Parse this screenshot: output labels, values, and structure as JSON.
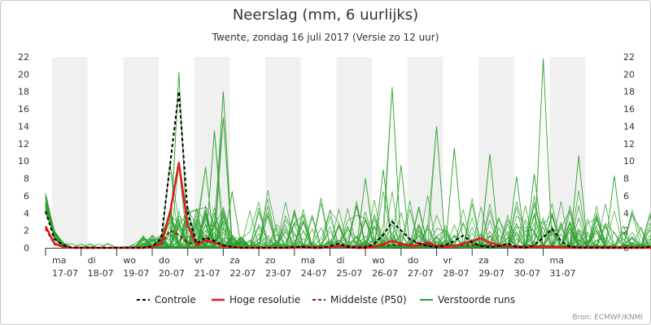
{
  "chart_data": {
    "type": "line",
    "title": "Neerslag (mm, 6 uurlijks)",
    "subtitle": "Twente, zondag 16 juli 2017 (Versie zo 12 uur)",
    "credit": "Bron: ECMWF/KNMI",
    "ylim": [
      0,
      22
    ],
    "yticks": [
      0,
      2,
      4,
      6,
      8,
      10,
      12,
      14,
      16,
      18,
      20,
      22
    ],
    "xlim": [
      0,
      15.75
    ],
    "grid": false,
    "legend_position": "bottom",
    "x_labels": [
      {
        "day": "ma",
        "date": "17-07"
      },
      {
        "day": "di",
        "date": "18-07"
      },
      {
        "day": "wo",
        "date": "19-07"
      },
      {
        "day": "do",
        "date": "20-07"
      },
      {
        "day": "vr",
        "date": "21-07"
      },
      {
        "day": "za",
        "date": "22-07"
      },
      {
        "day": "zo",
        "date": "23-07"
      },
      {
        "day": "ma",
        "date": "24-07"
      },
      {
        "day": "di",
        "date": "25-07"
      },
      {
        "day": "wo",
        "date": "26-07"
      },
      {
        "day": "do",
        "date": "27-07"
      },
      {
        "day": "vr",
        "date": "28-07"
      },
      {
        "day": "za",
        "date": "29-07"
      },
      {
        "day": "zo",
        "date": "30-07"
      },
      {
        "day": "ma",
        "date": "31-07"
      }
    ],
    "shaded_bands": [
      [
        0,
        1
      ],
      [
        2,
        3
      ],
      [
        4,
        5
      ],
      [
        6,
        7
      ],
      [
        8,
        9
      ],
      [
        10,
        11
      ],
      [
        12,
        13
      ],
      [
        14,
        15
      ]
    ],
    "legend": [
      {
        "label": "Controle",
        "color": "#000000",
        "dash": "4,3",
        "width": 2
      },
      {
        "label": "Hoge resolutie",
        "color": "#e31a1c",
        "dash": "",
        "width": 2.5
      },
      {
        "label": "Middelste (P50)",
        "color": "#8b1a1a",
        "dash": "4,3",
        "width": 2
      },
      {
        "label": "Verstoorde runs",
        "color": "#2ca02c",
        "dash": "",
        "width": 2
      }
    ],
    "series": [
      {
        "name": "Controle",
        "color": "#000000",
        "dash": "4,3",
        "width": 2,
        "values": [
          4.2,
          1.0,
          0.3,
          0,
          0,
          0,
          0,
          0,
          0,
          0,
          0,
          0,
          0.2,
          1.0,
          9.5,
          18.0,
          4.0,
          0.5,
          1.2,
          0.8,
          0.3,
          0.1,
          0,
          0,
          0,
          0,
          0,
          0,
          0.1,
          0.1,
          0,
          0,
          0.2,
          0.5,
          0.1,
          0,
          0,
          0.5,
          1.5,
          3.0,
          2.0,
          1.0,
          0.5,
          0.2,
          0.1,
          0.3,
          0.8,
          1.4,
          0.6,
          0.2,
          0.1,
          0.2,
          0.5,
          0.1,
          0,
          0.3,
          1.2,
          2.2,
          0.8,
          0.1,
          0,
          0,
          0,
          0,
          0,
          0,
          0,
          0,
          0.1,
          0,
          0,
          0.1,
          0,
          0,
          0.1,
          0,
          0,
          0,
          0.1,
          0,
          0,
          0,
          0.1,
          0
        ]
      },
      {
        "name": "Hoge resolutie",
        "color": "#e31a1c",
        "dash": "",
        "width": 2.5,
        "values": [
          2.5,
          0.5,
          0.1,
          0,
          0,
          0,
          0,
          0,
          0,
          0,
          0,
          0,
          0.1,
          0.5,
          4.0,
          9.8,
          2.5,
          0.3,
          0.9,
          0.6,
          0.2,
          0.1,
          0,
          0,
          0,
          0,
          0,
          0,
          0,
          0.1,
          0,
          0,
          0.1,
          0.2,
          0.1,
          0,
          0,
          0.1,
          0.4,
          0.8,
          0.5,
          0.2,
          0.3,
          0.6,
          0.2,
          0.1,
          0.2,
          0.5,
          0.8,
          1.1,
          0.6,
          0.3,
          0.2,
          0.1,
          0,
          0.1,
          0.2,
          0.1,
          0,
          0,
          0,
          0,
          0,
          0,
          0,
          0,
          0,
          0,
          0,
          0,
          0,
          0,
          0,
          0,
          0,
          0,
          0,
          0,
          0,
          0,
          0,
          0,
          0,
          0
        ]
      },
      {
        "name": "Middelste (P50)",
        "color": "#8b1a1a",
        "dash": "4,3",
        "width": 2,
        "values": [
          2.2,
          0.4,
          0.1,
          0,
          0,
          0,
          0,
          0,
          0,
          0,
          0,
          0,
          0.1,
          0.4,
          2.0,
          1.5,
          0.6,
          0.4,
          0.8,
          0.6,
          0.3,
          0.1,
          0,
          0,
          0,
          0,
          0,
          0,
          0,
          0.1,
          0.1,
          0.1,
          0.1,
          0.2,
          0.2,
          0.2,
          0.2,
          0.2,
          0.3,
          0.3,
          0.3,
          0.4,
          0.6,
          0.3,
          0.2,
          0.2,
          0.3,
          0.3,
          0.3,
          0.3,
          0.3,
          0.2,
          0.2,
          0.2,
          0.2,
          0.2,
          0.2,
          0.2,
          0.1,
          0.1,
          0.1,
          0.1,
          0.1,
          0.1,
          0.1,
          0.1,
          0.1,
          0.1,
          0.1,
          0.1,
          0.1,
          0.1,
          0.1,
          0.1,
          0.1,
          0.1,
          0.1,
          0.1,
          0.1,
          0.1,
          0.1,
          0.1,
          0.1,
          0.1
        ]
      }
    ],
    "ensemble": {
      "name": "Verstoorde runs",
      "color": "#2ca02c",
      "member_count": 50,
      "peaks": [
        {
          "t": 15,
          "v": 20.2
        },
        {
          "t": 15,
          "v": 9.5
        },
        {
          "t": 14,
          "v": 9.8
        },
        {
          "t": 18,
          "v": 9.3
        },
        {
          "t": 19,
          "v": 13.5
        },
        {
          "t": 20,
          "v": 18.0
        },
        {
          "t": 20,
          "v": 15.0
        },
        {
          "t": 21,
          "v": 6.5
        },
        {
          "t": 39,
          "v": 18.5
        },
        {
          "t": 38,
          "v": 9.0
        },
        {
          "t": 40,
          "v": 9.5
        },
        {
          "t": 36,
          "v": 8.0
        },
        {
          "t": 44,
          "v": 14.0
        },
        {
          "t": 46,
          "v": 11.5
        },
        {
          "t": 50,
          "v": 10.8
        },
        {
          "t": 53,
          "v": 8.2
        },
        {
          "t": 56,
          "v": 21.8
        },
        {
          "t": 55,
          "v": 8.5
        },
        {
          "t": 60,
          "v": 10.6
        },
        {
          "t": 64,
          "v": 8.3
        },
        {
          "t": 75,
          "v": 15.6
        },
        {
          "t": 78,
          "v": 8.5
        },
        {
          "t": 81,
          "v": 10.5
        },
        {
          "t": 82,
          "v": 9.5
        },
        {
          "t": 85,
          "v": 10.8
        },
        {
          "t": 90,
          "v": 12.0
        },
        {
          "t": 92,
          "v": 11.8
        },
        {
          "t": 95,
          "v": 7.5
        },
        {
          "t": 99,
          "v": 4.0
        },
        {
          "t": 101,
          "v": 7.5
        },
        {
          "t": 0,
          "v": 6.3
        },
        {
          "t": 0,
          "v": 5.8
        }
      ]
    }
  }
}
